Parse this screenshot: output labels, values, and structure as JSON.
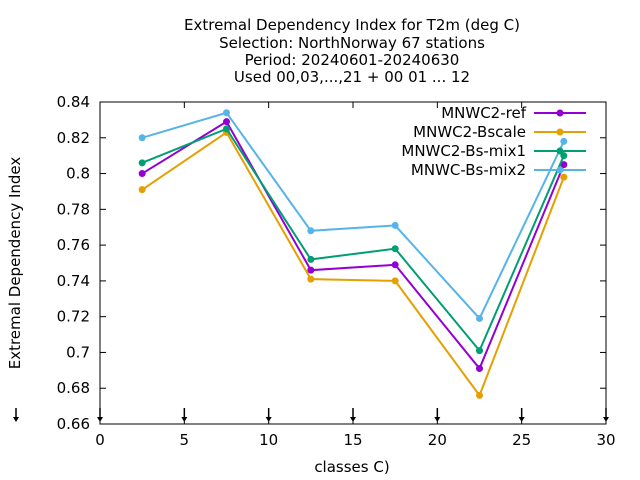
{
  "chart_data": {
    "type": "line",
    "title_lines": [
      "Extremal Dependency Index  for T2m (deg C)",
      "Selection: NorthNorway     67 stations",
      "Period: 20240601-20240630",
      "Used 00,03,...,21 + 00 01 ... 12"
    ],
    "xlabel": "classes C)",
    "ylabel": "Extremal Dependency Index",
    "xlim": [
      0,
      30
    ],
    "ylim": [
      0.66,
      0.84
    ],
    "x_ticks": [
      0,
      5,
      10,
      15,
      20,
      25,
      30
    ],
    "x_tick_labels": [
      "0",
      "5",
      "10",
      "15",
      "20",
      "25",
      "30"
    ],
    "y_ticks": [
      0.66,
      0.68,
      0.7,
      0.72,
      0.74,
      0.76,
      0.78,
      0.8,
      0.82,
      0.84
    ],
    "y_tick_labels": [
      "0.66",
      "0.68",
      "0.7",
      "0.72",
      "0.74",
      "0.76",
      "0.78",
      "0.8",
      "0.82",
      "0.84"
    ],
    "grid": false,
    "legend_position": "top-right",
    "bottom_markers_x": [
      0,
      5,
      10,
      15,
      20,
      25,
      30
    ],
    "series": [
      {
        "name": "MNWC2-ref",
        "color": "#9400d3",
        "x": [
          2.5,
          7.5,
          12.5,
          17.5,
          22.5,
          27.5
        ],
        "y": [
          0.8,
          0.829,
          0.746,
          0.749,
          0.691,
          0.805
        ]
      },
      {
        "name": "MNWC2-Bscale",
        "color": "#e69f00",
        "x": [
          2.5,
          7.5,
          12.5,
          17.5,
          22.5,
          27.5
        ],
        "y": [
          0.791,
          0.823,
          0.741,
          0.74,
          0.676,
          0.798
        ]
      },
      {
        "name": "MNWC2-Bs-mix1",
        "color": "#009e73",
        "x": [
          2.5,
          7.5,
          12.5,
          17.5,
          22.5,
          27.5
        ],
        "y": [
          0.806,
          0.825,
          0.752,
          0.758,
          0.701,
          0.81
        ]
      },
      {
        "name": "MNWC-Bs-mix2",
        "color": "#56b4e9",
        "x": [
          2.5,
          7.5,
          12.5,
          17.5,
          22.5,
          27.5
        ],
        "y": [
          0.82,
          0.834,
          0.768,
          0.771,
          0.719,
          0.818
        ]
      }
    ]
  }
}
